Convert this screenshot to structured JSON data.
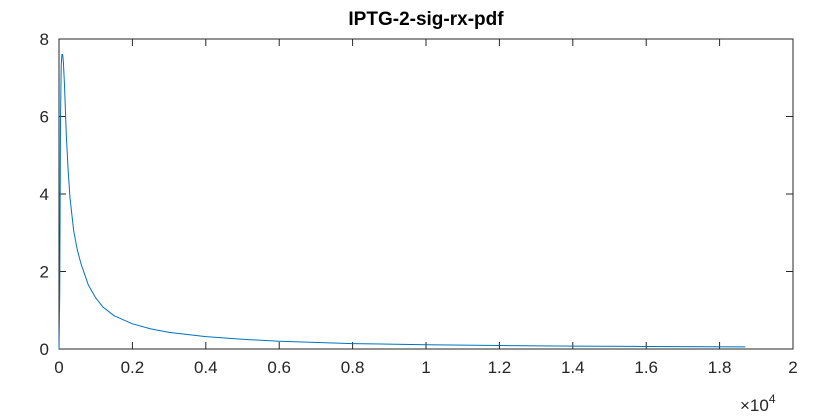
{
  "chart_data": {
    "type": "line",
    "title": "IPTG-2-sig-rx-pdf",
    "xlabel": "",
    "ylabel": "",
    "x_exponent_prefix": "×10",
    "x_exponent": "4",
    "xlim": [
      0,
      2
    ],
    "ylim": [
      0,
      8
    ],
    "x_ticks": [
      0,
      0.2,
      0.4,
      0.6,
      0.8,
      1,
      1.2,
      1.4,
      1.6,
      1.8,
      2
    ],
    "x_tick_labels": [
      "0",
      "0.2",
      "0.4",
      "0.6",
      "0.8",
      "1",
      "1.2",
      "1.4",
      "1.6",
      "1.8",
      "2"
    ],
    "y_ticks": [
      0,
      2,
      4,
      6,
      8
    ],
    "y_tick_labels": [
      "0",
      "2",
      "4",
      "6",
      "8"
    ],
    "grid": false,
    "legend": "none",
    "series": [
      {
        "color": "#0072bd",
        "x": [
          0,
          0.002,
          0.004,
          0.006,
          0.008,
          0.01,
          0.012,
          0.015,
          0.02,
          0.025,
          0.03,
          0.04,
          0.05,
          0.06,
          0.08,
          0.1,
          0.12,
          0.15,
          0.2,
          0.25,
          0.3,
          0.4,
          0.5,
          0.6,
          0.8,
          1.0,
          1.2,
          1.4,
          1.6,
          1.87
        ],
        "y": [
          0,
          1.4,
          5.8,
          7.3,
          7.6,
          7.6,
          7.4,
          6.8,
          5.5,
          4.6,
          3.9,
          3.05,
          2.55,
          2.2,
          1.65,
          1.32,
          1.08,
          0.86,
          0.65,
          0.52,
          0.43,
          0.32,
          0.25,
          0.2,
          0.14,
          0.11,
          0.09,
          0.075,
          0.065,
          0.055
        ]
      }
    ]
  }
}
